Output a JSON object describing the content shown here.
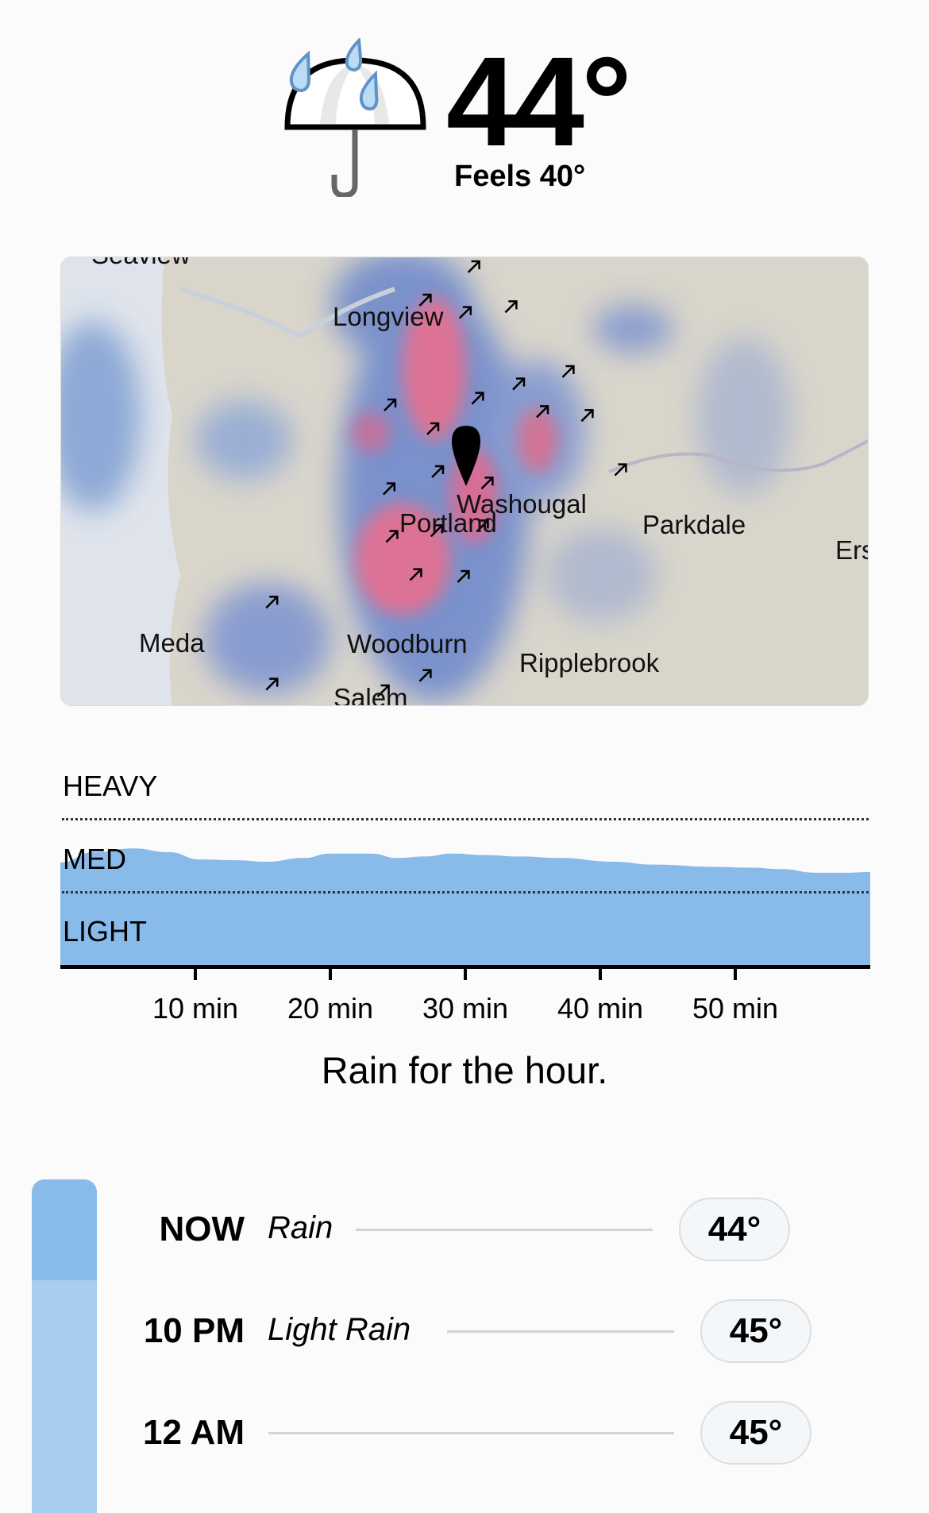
{
  "current": {
    "icon": "umbrella-rain-icon",
    "temperature": "44°",
    "feels_like": "Feels 40°"
  },
  "map": {
    "labels": [
      "Seaview",
      "Longview",
      "Washougal",
      "Portland",
      "Parkdale",
      "Ers",
      "Meda",
      "Woodburn",
      "Ripplebrook",
      "Salem"
    ],
    "pin_icon": "location-pin-icon",
    "wind_icon": "wind-arrow-icon"
  },
  "chart_data": {
    "type": "area",
    "levels": [
      "HEAVY",
      "MED",
      "LIGHT"
    ],
    "x_unit": "min",
    "xlim": [
      0,
      60
    ],
    "ylim": [
      0,
      3
    ],
    "x_ticks": [
      "10 min",
      "20 min",
      "30 min",
      "40 min",
      "50 min"
    ],
    "x_tick_values": [
      10,
      20,
      30,
      40,
      50
    ],
    "x": [
      0,
      2.5,
      5.4,
      8,
      10.4,
      13,
      15.3,
      18,
      20,
      23,
      25,
      27,
      29,
      31.5,
      34,
      37,
      41,
      44,
      48.5,
      51,
      53.4,
      56,
      58,
      60
    ],
    "values": [
      1.41,
      1.55,
      1.6,
      1.55,
      1.45,
      1.44,
      1.42,
      1.47,
      1.53,
      1.53,
      1.47,
      1.49,
      1.53,
      1.51,
      1.49,
      1.47,
      1.42,
      1.38,
      1.35,
      1.34,
      1.32,
      1.27,
      1.27,
      1.28
    ],
    "color": "#88bbe9"
  },
  "summary": "Rain for the hour.",
  "hourly": [
    {
      "time": "NOW",
      "condition": "Rain",
      "temp": "44°"
    },
    {
      "time": "10 PM",
      "condition": "Light Rain",
      "temp": "45°"
    },
    {
      "time": "12 AM",
      "condition": "",
      "temp": "45°"
    }
  ],
  "colors": {
    "rain_now": "#88bbe9",
    "rain_later": "#a9cdef",
    "map_land": "#d9d5cb",
    "radar_heavy": "#e86a8a",
    "radar_med": "#5577c4"
  }
}
